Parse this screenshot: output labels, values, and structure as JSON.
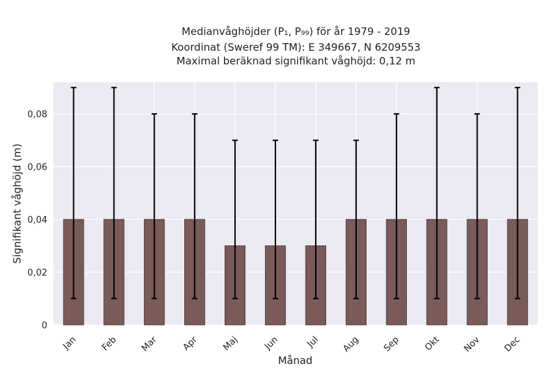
{
  "chart_data": {
    "type": "bar",
    "title_lines": [
      "Medianvåghöjder (P₁, P₉₉) för år 1979 - 2019",
      "Koordinat (Sweref 99 TM): E 349667, N 6209553",
      "Maximal beräknad signifikant våghöjd: 0,12 m"
    ],
    "xlabel": "Månad",
    "ylabel": "Signifikant våghöjd (m)",
    "ylim": [
      0,
      0.092
    ],
    "yticks": [
      0,
      0.02,
      0.04,
      0.06,
      0.08
    ],
    "ytick_labels": [
      "0",
      "0,02",
      "0,04",
      "0,06",
      "0,08"
    ],
    "categories": [
      "Jan",
      "Feb",
      "Mar",
      "Apr",
      "Maj",
      "Jun",
      "Jul",
      "Aug",
      "Sep",
      "Okt",
      "Nov",
      "Dec"
    ],
    "values": [
      0.04,
      0.04,
      0.04,
      0.04,
      0.03,
      0.03,
      0.03,
      0.04,
      0.04,
      0.04,
      0.04,
      0.04
    ],
    "error_low": [
      0.01,
      0.01,
      0.01,
      0.01,
      0.01,
      0.01,
      0.01,
      0.01,
      0.01,
      0.01,
      0.01,
      0.01
    ],
    "error_high": [
      0.09,
      0.09,
      0.08,
      0.08,
      0.07,
      0.07,
      0.07,
      0.07,
      0.08,
      0.09,
      0.08,
      0.09
    ],
    "grid": true,
    "colors": {
      "bar": "#7b5a5a",
      "bar_edge": "#3e2c2c",
      "error": "#000000",
      "plot_bg": "#eaeaf2",
      "grid": "#ffffff"
    }
  }
}
